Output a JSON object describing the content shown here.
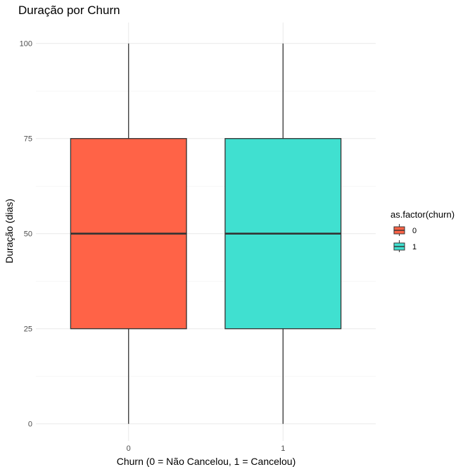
{
  "chart_data": {
    "type": "boxplot",
    "title": "Duração por Churn",
    "xlabel": "Churn (0 = Não Cancelou, 1 = Cancelou)",
    "ylabel": "Duração (dias)",
    "categories": [
      "0",
      "1"
    ],
    "ylim": [
      0,
      100
    ],
    "yticks": [
      0,
      25,
      50,
      75,
      100
    ],
    "grid": true,
    "legend": {
      "title": "as.factor(churn)",
      "position": "right",
      "entries": [
        {
          "label": "0",
          "color": "#FF6347"
        },
        {
          "label": "1",
          "color": "#40E0D0"
        }
      ]
    },
    "boxes": [
      {
        "category": "0",
        "min": 0,
        "q1": 25,
        "median": 50,
        "q3": 75,
        "max": 100,
        "color": "#FF6347"
      },
      {
        "category": "1",
        "min": 0,
        "q1": 25,
        "median": 50,
        "q3": 75,
        "max": 100,
        "color": "#40E0D0"
      }
    ]
  }
}
